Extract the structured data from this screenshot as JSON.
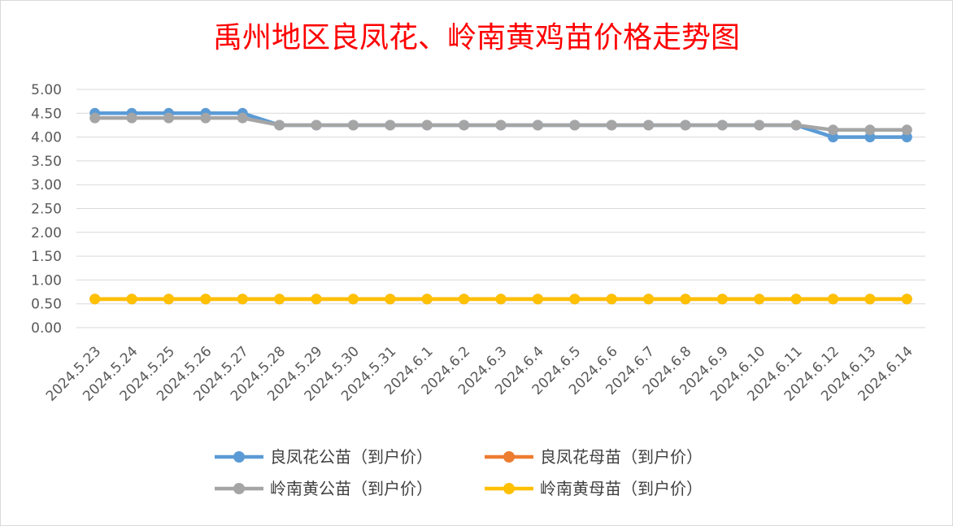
{
  "chart_data": {
    "type": "line",
    "title": "禹州地区良凤花、岭南黄鸡苗价格走势图",
    "xlabel": "",
    "ylabel": "",
    "ylim": [
      0,
      5
    ],
    "yticks": [
      "0.00",
      "0.50",
      "1.00",
      "1.50",
      "2.00",
      "2.50",
      "3.00",
      "3.50",
      "4.00",
      "4.50",
      "5.00"
    ],
    "grid": true,
    "legend_position": "bottom",
    "categories": [
      "2024.5.23",
      "2024.5.24",
      "2024.5.25",
      "2024.5.26",
      "2024.5.27",
      "2024.5.28",
      "2024.5.29",
      "2024.5.30",
      "2024.5.31",
      "2024.6.1",
      "2024.6.2",
      "2024.6.3",
      "2024.6.4",
      "2024.6.5",
      "2024.6.6",
      "2024.6.7",
      "2024.6.8",
      "2024.6.9",
      "2024.6.10",
      "2024.6.11",
      "2024.6.12",
      "2024.6.13",
      "2024.6.14"
    ],
    "series": [
      {
        "name": "良凤花公苗（到户价）",
        "color": "#5b9bd5",
        "values": [
          4.5,
          4.5,
          4.5,
          4.5,
          4.5,
          4.25,
          4.25,
          4.25,
          4.25,
          4.25,
          4.25,
          4.25,
          4.25,
          4.25,
          4.25,
          4.25,
          4.25,
          4.25,
          4.25,
          4.25,
          4.0,
          4.0,
          4.0
        ]
      },
      {
        "name": "良凤花母苗（到户价）",
        "color": "#ed7d31",
        "values": [
          0.6,
          0.6,
          0.6,
          0.6,
          0.6,
          0.6,
          0.6,
          0.6,
          0.6,
          0.6,
          0.6,
          0.6,
          0.6,
          0.6,
          0.6,
          0.6,
          0.6,
          0.6,
          0.6,
          0.6,
          0.6,
          0.6,
          0.6
        ]
      },
      {
        "name": "岭南黄公苗（到户价）",
        "color": "#a5a5a5",
        "values": [
          4.4,
          4.4,
          4.4,
          4.4,
          4.4,
          4.25,
          4.25,
          4.25,
          4.25,
          4.25,
          4.25,
          4.25,
          4.25,
          4.25,
          4.25,
          4.25,
          4.25,
          4.25,
          4.25,
          4.25,
          4.15,
          4.15,
          4.15
        ]
      },
      {
        "name": "岭南黄母苗（到户价）",
        "color": "#ffc000",
        "values": [
          0.6,
          0.6,
          0.6,
          0.6,
          0.6,
          0.6,
          0.6,
          0.6,
          0.6,
          0.6,
          0.6,
          0.6,
          0.6,
          0.6,
          0.6,
          0.6,
          0.6,
          0.6,
          0.6,
          0.6,
          0.6,
          0.6,
          0.6
        ]
      }
    ]
  }
}
